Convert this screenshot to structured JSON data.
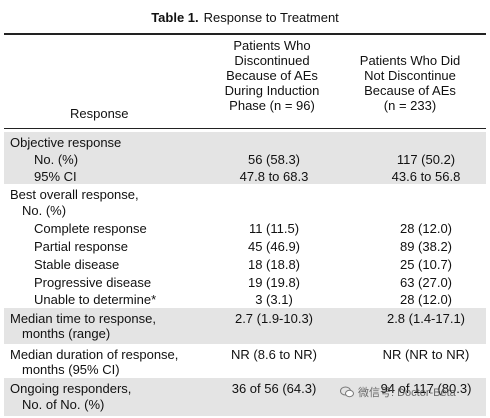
{
  "table": {
    "title_bold": "Table 1.",
    "title_rest": "Response to Treatment",
    "header": {
      "response": "Response",
      "col1": [
        "Patients Who",
        "Discontinued",
        "Because of AEs",
        "During Induction",
        "Phase (n = 96)"
      ],
      "col2": [
        "Patients Who Did",
        "Not Discontinue",
        "Because of AEs",
        "(n = 233)"
      ]
    },
    "rows": [
      {
        "label": "Objective response"
      },
      {
        "label": "No. (%)",
        "c1": "56 (58.3)",
        "c2": "117 (50.2)"
      },
      {
        "label": "95% CI",
        "c1": "47.8 to 68.3",
        "c2": "43.6 to 56.8"
      },
      {
        "label": "Best overall response,"
      },
      {
        "label": "No. (%)"
      },
      {
        "label": "Complete response",
        "c1": "11 (11.5)",
        "c2": "28 (12.0)"
      },
      {
        "label": "Partial response",
        "c1": "45 (46.9)",
        "c2": "89 (38.2)"
      },
      {
        "label": "Stable disease",
        "c1": "18 (18.8)",
        "c2": "25 (10.7)"
      },
      {
        "label": "Progressive disease",
        "c1": "19 (19.8)",
        "c2": "63 (27.0)"
      },
      {
        "label": "Unable to determine*",
        "c1": "3 (3.1)",
        "c2": "28 (12.0)"
      },
      {
        "label": "Median time to response,",
        "c1": "2.7 (1.9-10.3)",
        "c2": "2.8 (1.4-17.1)"
      },
      {
        "label": "months (range)"
      },
      {
        "label": "Median duration of response,",
        "c1": "NR (8.6 to NR)",
        "c2": "NR (NR to NR)"
      },
      {
        "label": "months (95% CI)"
      },
      {
        "label": "Ongoing responders,",
        "c1": "36 of 56 (64.3)",
        "c2": "94 of 117 (80.3)"
      },
      {
        "label": "No. of No. (%)"
      }
    ]
  },
  "watermark": {
    "text": "微信号: Doctor-Beta",
    "icon": "wechat-icon"
  }
}
